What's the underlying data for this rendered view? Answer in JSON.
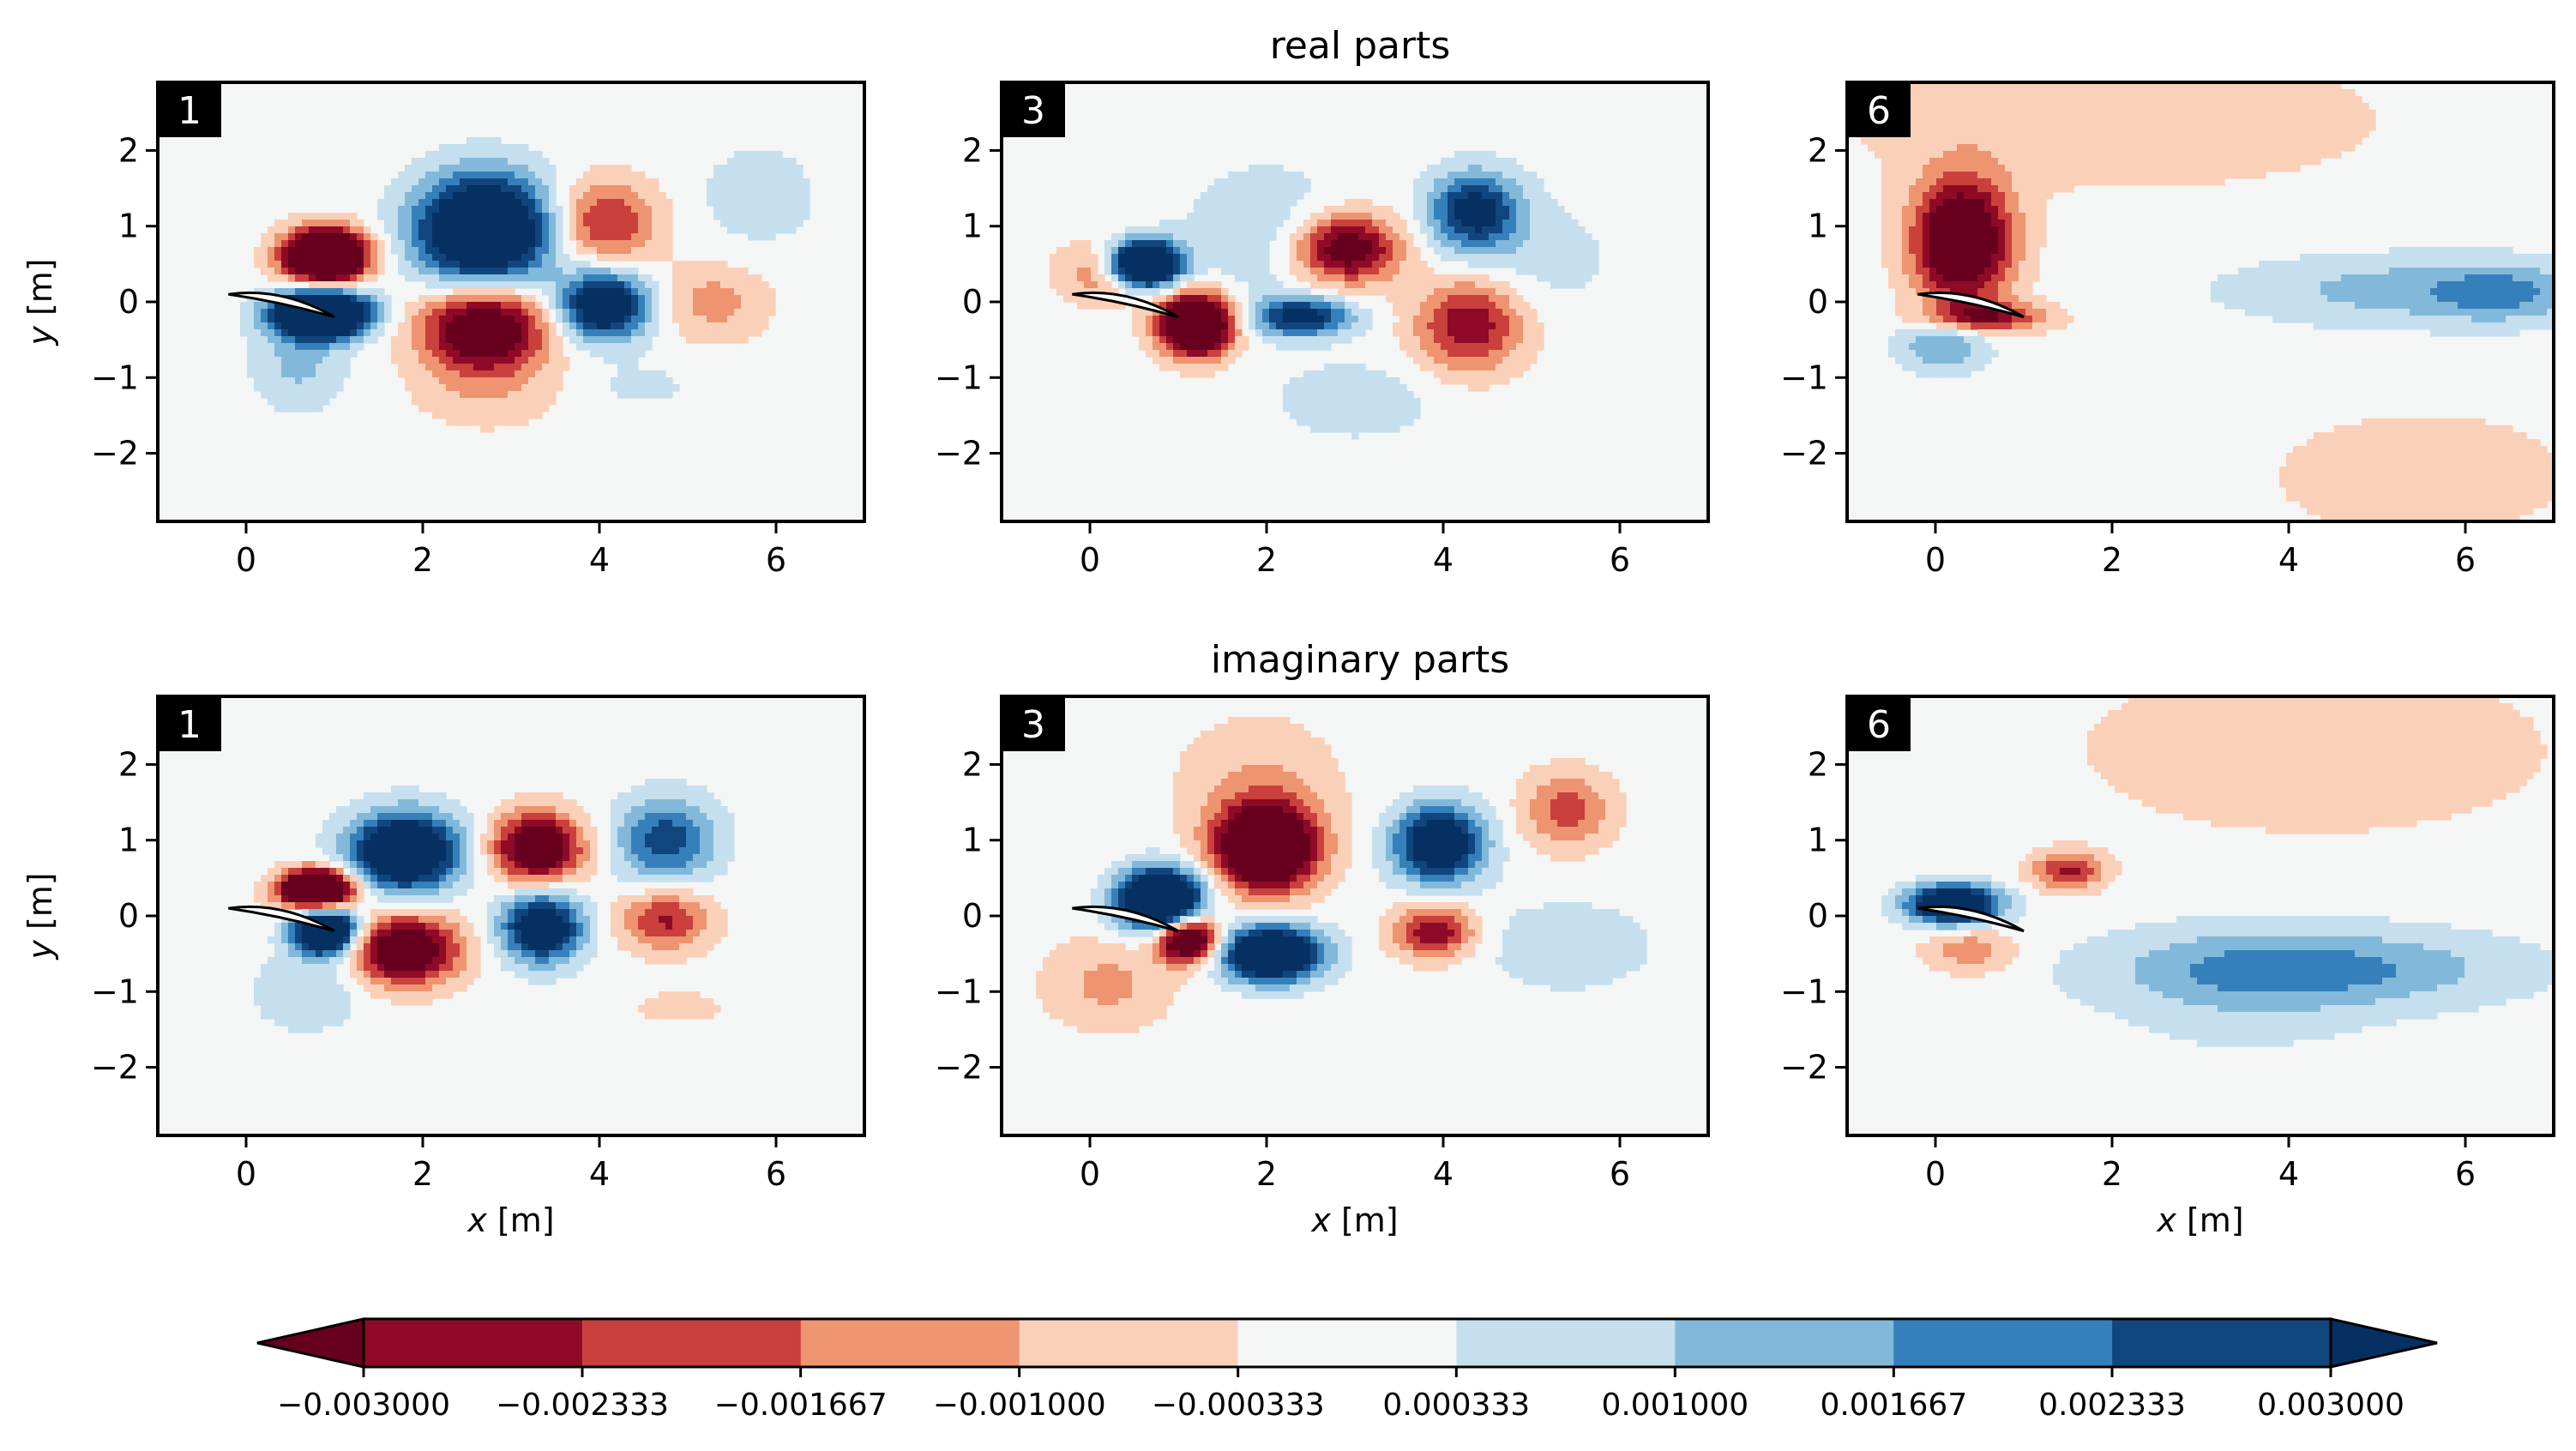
{
  "chart_data": {
    "type": "heatmap",
    "description_kind": "contour",
    "row_titles": [
      "real parts",
      "imaginary parts"
    ],
    "x_label_var": "x",
    "x_label_unit": " [m]",
    "y_label_var": "y",
    "y_label_unit": " [m]",
    "xlim": [
      -1,
      7
    ],
    "ylim": [
      -2.9,
      2.9
    ],
    "x_ticks": [
      0,
      2,
      4,
      6
    ],
    "y_ticks": [
      -2,
      -1,
      0,
      1,
      2
    ],
    "tick_labels": {
      "x": [
        "0",
        "2",
        "4",
        "6"
      ],
      "y": [
        "−2",
        "−1",
        "0",
        "1",
        "2"
      ]
    },
    "colorbar": {
      "levels": [
        -0.003,
        -0.002333,
        -0.001667,
        -0.001,
        -0.000333,
        0.000333,
        0.001,
        0.001667,
        0.002333,
        0.003
      ],
      "labels": [
        "−0.003000",
        "−0.002333",
        "−0.001667",
        "−0.001000",
        "−0.000333",
        "0.000333",
        "0.001000",
        "0.001667",
        "0.002333",
        "0.003000"
      ],
      "colors": [
        "#8e0a26",
        "#c9403c",
        "#ee9470",
        "#fbd0b9",
        "#f4f6f6",
        "#c5dfee",
        "#82b9da",
        "#3580bb",
        "#11457d"
      ],
      "under_color": "#67001f",
      "over_color": "#053061"
    },
    "panels": [
      {
        "row": 0,
        "col": 0,
        "label": "1"
      },
      {
        "row": 0,
        "col": 1,
        "label": "3"
      },
      {
        "row": 0,
        "col": 2,
        "label": "6"
      },
      {
        "row": 1,
        "col": 0,
        "label": "1"
      },
      {
        "row": 1,
        "col": 1,
        "label": "3"
      },
      {
        "row": 1,
        "col": 2,
        "label": "6"
      }
    ]
  }
}
